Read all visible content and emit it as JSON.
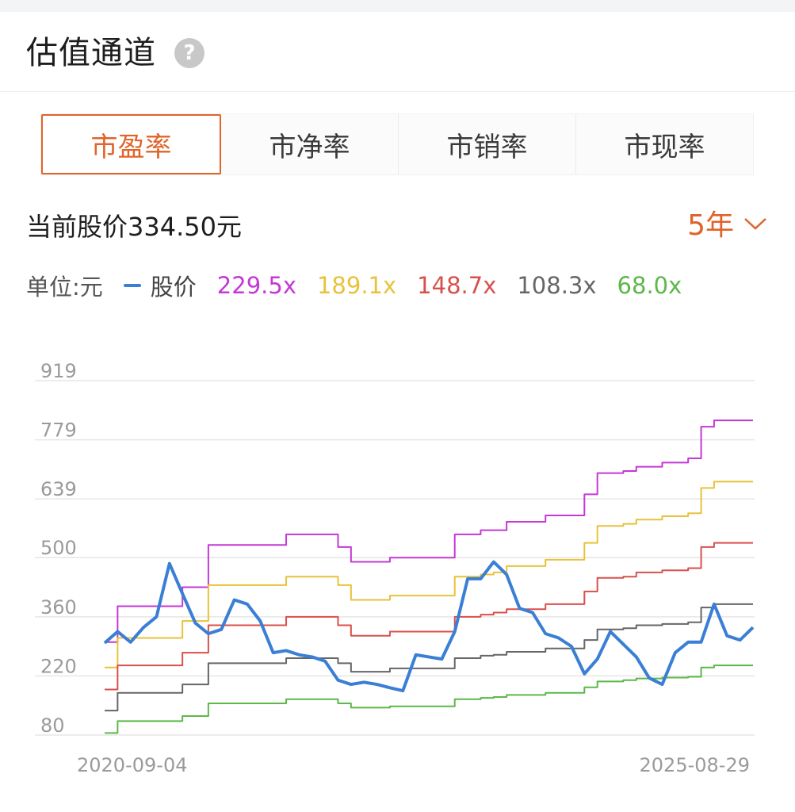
{
  "header": {
    "title": "估值通道",
    "help_icon": "question-icon"
  },
  "tabs": [
    {
      "label": "市盈率",
      "active": true
    },
    {
      "label": "市净率",
      "active": false
    },
    {
      "label": "市销率",
      "active": false
    },
    {
      "label": "市现率",
      "active": false
    }
  ],
  "price_text": "当前股价334.50元",
  "period": {
    "label": "5年",
    "icon": "chevron-down-icon"
  },
  "legend": {
    "unit": "单位:元",
    "price_label": "股价",
    "bands": [
      {
        "label": "229.5x",
        "color": "#c438d6"
      },
      {
        "label": "189.1x",
        "color": "#e8c23a"
      },
      {
        "label": "148.7x",
        "color": "#d8504c"
      },
      {
        "label": "108.3x",
        "color": "#666666"
      },
      {
        "label": "68.0x",
        "color": "#5cb848"
      }
    ]
  },
  "colors": {
    "accent": "#e0642a",
    "price": "#3a7fd5"
  },
  "chart_data": {
    "type": "line",
    "xlabel": "",
    "ylabel": "",
    "ylim": [
      80,
      919
    ],
    "yticks": [
      919,
      779,
      639,
      500,
      360,
      220,
      80
    ],
    "x_range_labels": [
      "2020-09-04",
      "2025-08-29"
    ],
    "grid": true,
    "x": [
      0,
      0.02,
      0.04,
      0.06,
      0.08,
      0.1,
      0.12,
      0.14,
      0.16,
      0.18,
      0.2,
      0.22,
      0.24,
      0.26,
      0.28,
      0.3,
      0.32,
      0.34,
      0.36,
      0.38,
      0.4,
      0.42,
      0.44,
      0.46,
      0.48,
      0.5,
      0.52,
      0.54,
      0.56,
      0.58,
      0.6,
      0.62,
      0.64,
      0.66,
      0.68,
      0.7,
      0.72,
      0.74,
      0.76,
      0.78,
      0.8,
      0.82,
      0.84,
      0.86,
      0.88,
      0.9,
      0.92,
      0.94,
      0.96,
      0.98,
      1.0
    ],
    "series": [
      {
        "name": "股价",
        "values": [
          298,
          325,
          300,
          335,
          360,
          486,
          415,
          345,
          320,
          330,
          400,
          390,
          350,
          275,
          280,
          270,
          265,
          255,
          210,
          200,
          205,
          200,
          192,
          185,
          270,
          265,
          260,
          325,
          450,
          450,
          490,
          460,
          380,
          370,
          320,
          310,
          290,
          225,
          260,
          325,
          295,
          265,
          215,
          200,
          275,
          300,
          300,
          390,
          315,
          305,
          335
        ]
      },
      {
        "name": "229.5x",
        "values": [
          300,
          385,
          385,
          385,
          385,
          385,
          430,
          430,
          530,
          530,
          530,
          530,
          530,
          530,
          555,
          555,
          555,
          555,
          525,
          490,
          490,
          490,
          500,
          500,
          500,
          500,
          500,
          555,
          555,
          565,
          565,
          585,
          585,
          585,
          600,
          600,
          600,
          650,
          700,
          700,
          705,
          715,
          715,
          725,
          725,
          735,
          810,
          825,
          825,
          825,
          825
        ]
      },
      {
        "name": "189.1x",
        "values": [
          240,
          310,
          310,
          310,
          310,
          310,
          350,
          350,
          435,
          435,
          435,
          435,
          435,
          435,
          455,
          455,
          455,
          455,
          435,
          400,
          400,
          400,
          410,
          410,
          410,
          410,
          410,
          455,
          455,
          460,
          465,
          480,
          480,
          480,
          495,
          495,
          495,
          535,
          575,
          575,
          580,
          590,
          590,
          598,
          598,
          605,
          665,
          680,
          680,
          680,
          680
        ]
      },
      {
        "name": "148.7x",
        "values": [
          188,
          245,
          245,
          245,
          245,
          245,
          275,
          275,
          340,
          340,
          340,
          340,
          340,
          340,
          360,
          360,
          360,
          360,
          340,
          315,
          315,
          315,
          325,
          325,
          325,
          325,
          325,
          360,
          360,
          365,
          370,
          378,
          378,
          378,
          390,
          390,
          390,
          420,
          452,
          452,
          455,
          465,
          465,
          470,
          470,
          475,
          525,
          535,
          535,
          535,
          535
        ]
      },
      {
        "name": "108.3x",
        "values": [
          138,
          180,
          180,
          180,
          180,
          180,
          200,
          200,
          250,
          250,
          250,
          250,
          250,
          250,
          262,
          262,
          262,
          262,
          250,
          230,
          230,
          230,
          238,
          238,
          238,
          238,
          238,
          262,
          262,
          268,
          270,
          277,
          277,
          277,
          285,
          285,
          285,
          305,
          330,
          330,
          333,
          340,
          340,
          343,
          343,
          347,
          382,
          390,
          390,
          390,
          390
        ]
      },
      {
        "name": "68.0x",
        "values": [
          85,
          113,
          113,
          113,
          113,
          113,
          125,
          125,
          155,
          155,
          155,
          155,
          155,
          155,
          165,
          165,
          165,
          165,
          155,
          145,
          145,
          145,
          148,
          148,
          148,
          148,
          148,
          165,
          165,
          168,
          170,
          175,
          175,
          175,
          180,
          180,
          180,
          193,
          207,
          207,
          210,
          214,
          214,
          216,
          216,
          218,
          240,
          245,
          245,
          245,
          245
        ]
      }
    ]
  }
}
